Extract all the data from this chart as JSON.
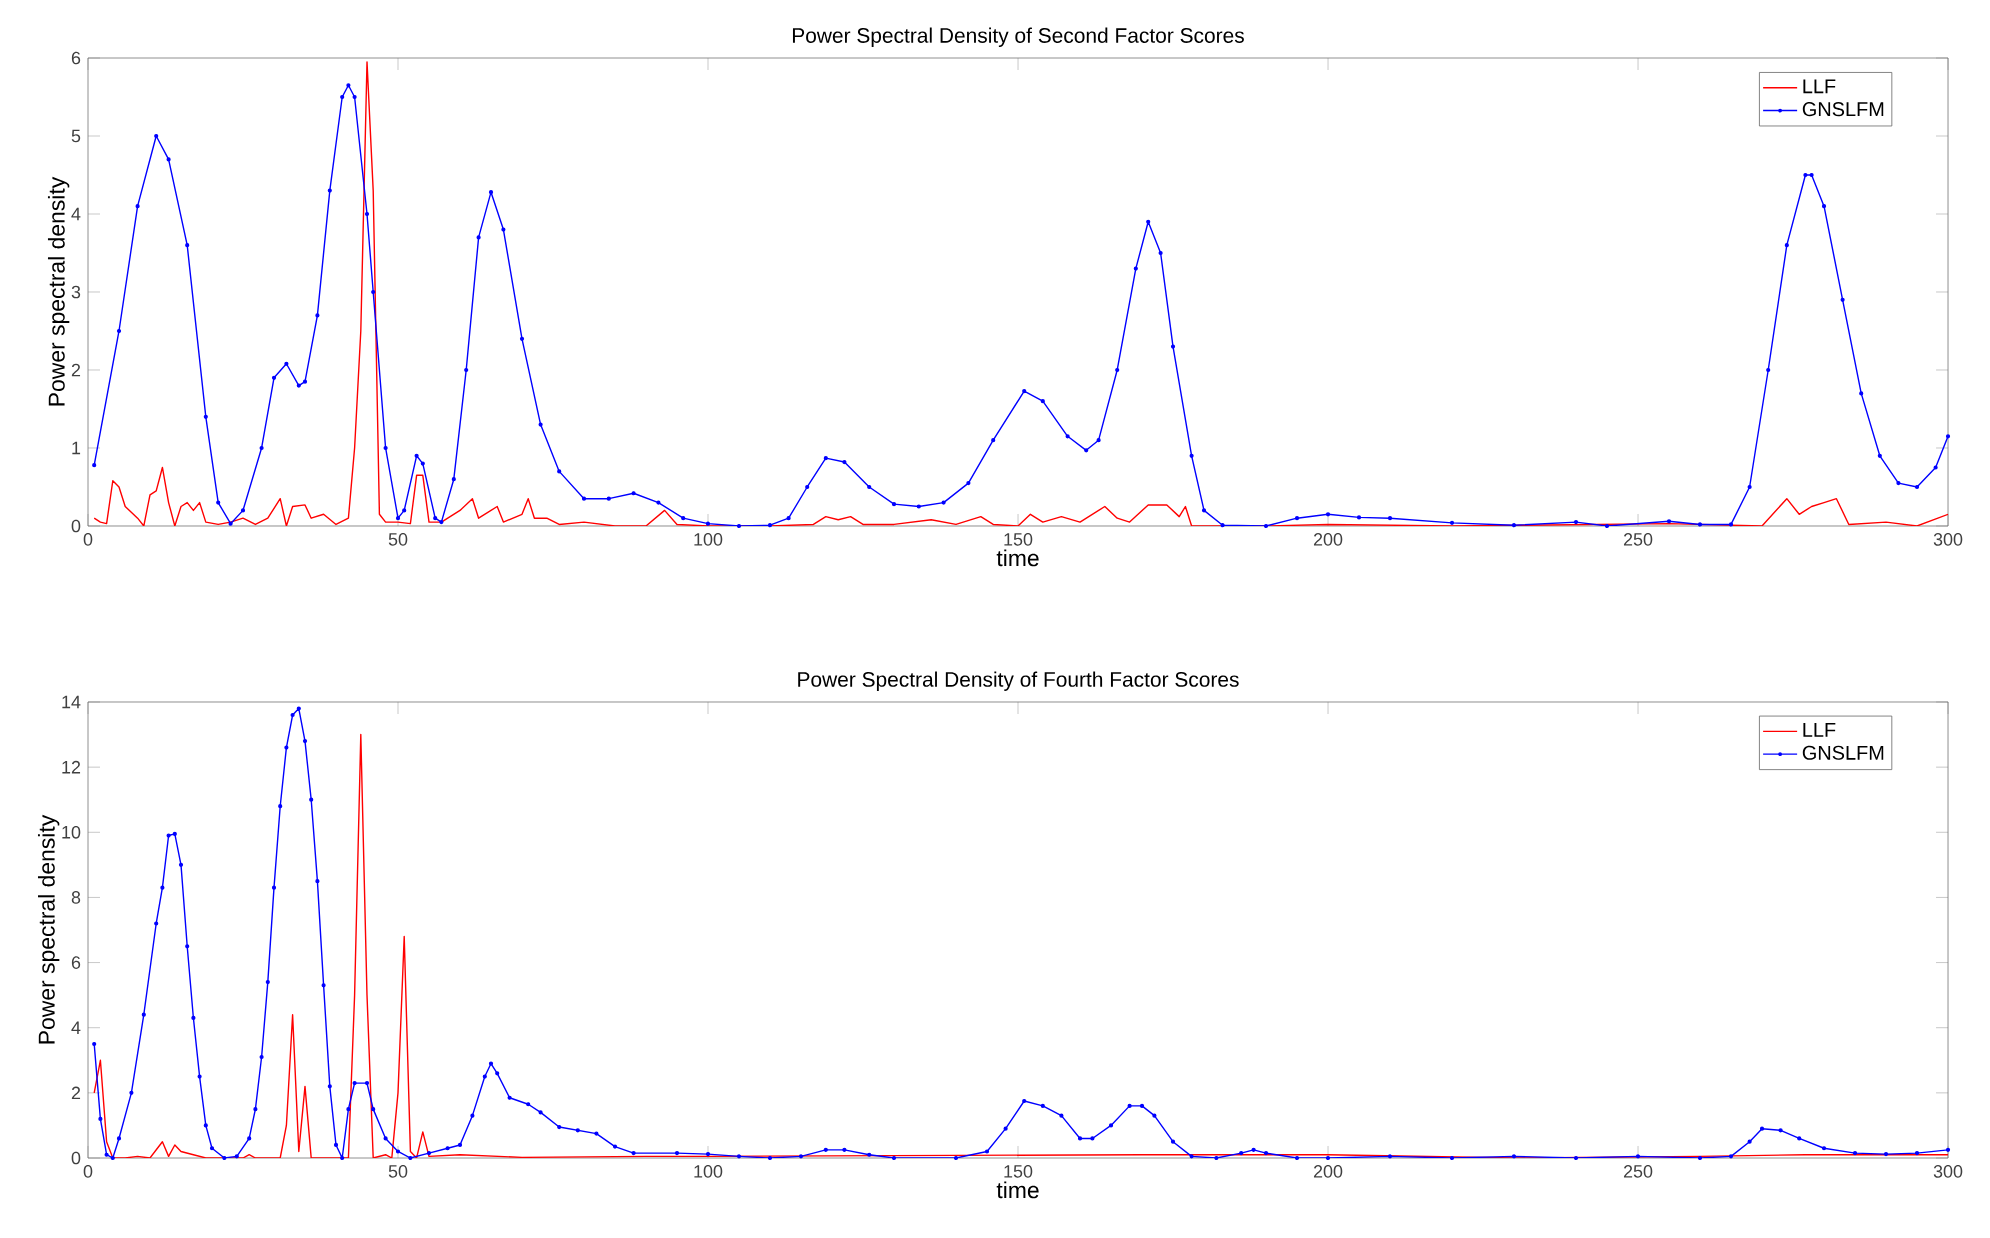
{
  "chart_data": [
    {
      "type": "line",
      "title": "Power Spectral Density of Second Factor Scores",
      "xlabel": "time",
      "ylabel": "Power spectral density",
      "xlim": [
        0,
        300
      ],
      "ylim": [
        0,
        6
      ],
      "xticks": [
        0,
        50,
        100,
        150,
        200,
        250,
        300
      ],
      "yticks": [
        0,
        1,
        2,
        3,
        4,
        5,
        6
      ],
      "grid": false,
      "legend": "top right",
      "series": [
        {
          "name": "LLF",
          "color": "#ff0000",
          "marker": "none",
          "x": [
            1,
            2,
            3,
            4,
            5,
            6,
            8,
            9,
            10,
            11,
            12,
            13,
            14,
            15,
            16,
            17,
            18,
            19,
            21,
            23,
            25,
            27,
            29,
            31,
            32,
            33,
            35,
            36,
            38,
            40,
            42,
            43,
            44,
            45,
            46,
            47,
            48,
            50,
            52,
            53,
            54,
            55,
            57,
            60,
            62,
            63,
            66,
            67,
            70,
            71,
            72,
            74,
            76,
            80,
            85,
            90,
            93,
            95,
            100,
            110,
            117,
            119,
            121,
            123,
            125,
            130,
            136,
            140,
            144,
            146,
            150,
            152,
            154,
            157,
            160,
            164,
            166,
            168,
            171,
            174,
            176,
            177,
            178,
            190,
            200,
            220,
            255,
            270,
            274,
            276,
            278,
            280,
            282,
            284,
            290,
            295,
            300
          ],
          "values": [
            0.1,
            0.05,
            0.03,
            0.58,
            0.5,
            0.25,
            0.1,
            0.0,
            0.4,
            0.45,
            0.75,
            0.3,
            0.0,
            0.25,
            0.3,
            0.2,
            0.3,
            0.05,
            0.02,
            0.05,
            0.1,
            0.02,
            0.1,
            0.35,
            0.0,
            0.25,
            0.27,
            0.1,
            0.15,
            0.02,
            0.1,
            1.0,
            2.5,
            5.95,
            4.3,
            0.15,
            0.05,
            0.05,
            0.03,
            0.65,
            0.65,
            0.05,
            0.05,
            0.2,
            0.35,
            0.1,
            0.25,
            0.05,
            0.15,
            0.35,
            0.1,
            0.1,
            0.02,
            0.05,
            0.0,
            0.0,
            0.2,
            0.02,
            0.0,
            0.0,
            0.02,
            0.12,
            0.08,
            0.12,
            0.02,
            0.02,
            0.08,
            0.02,
            0.12,
            0.02,
            0.0,
            0.15,
            0.05,
            0.12,
            0.05,
            0.25,
            0.1,
            0.05,
            0.27,
            0.27,
            0.12,
            0.25,
            0.0,
            0.0,
            0.02,
            0.0,
            0.03,
            0.0,
            0.35,
            0.15,
            0.25,
            0.3,
            0.35,
            0.02,
            0.05,
            0.0,
            0.15
          ]
        },
        {
          "name": "GNSLFM",
          "color": "#0000ff",
          "marker": "circle",
          "x": [
            1,
            5,
            8,
            11,
            13,
            16,
            19,
            21,
            23,
            25,
            28,
            30,
            32,
            34,
            35,
            37,
            39,
            41,
            42,
            43,
            45,
            46,
            48,
            50,
            51,
            53,
            54,
            56,
            57,
            59,
            61,
            63,
            65,
            67,
            70,
            73,
            76,
            80,
            84,
            88,
            92,
            96,
            100,
            105,
            110,
            113,
            116,
            119,
            122,
            126,
            130,
            134,
            138,
            142,
            146,
            151,
            154,
            158,
            161,
            163,
            166,
            169,
            171,
            173,
            175,
            178,
            180,
            183,
            190,
            195,
            200,
            205,
            210,
            220,
            230,
            240,
            245,
            255,
            260,
            265,
            268,
            271,
            274,
            277,
            278,
            280,
            283,
            286,
            289,
            292,
            295,
            298,
            300
          ],
          "values": [
            0.78,
            2.5,
            4.1,
            5.0,
            4.7,
            3.6,
            1.4,
            0.3,
            0.03,
            0.2,
            1.0,
            1.9,
            2.08,
            1.8,
            1.85,
            2.7,
            4.3,
            5.5,
            5.65,
            5.5,
            4.0,
            3.0,
            1.0,
            0.1,
            0.2,
            0.9,
            0.8,
            0.1,
            0.05,
            0.6,
            2.0,
            3.7,
            4.28,
            3.8,
            2.4,
            1.3,
            0.7,
            0.35,
            0.35,
            0.42,
            0.3,
            0.1,
            0.03,
            0.0,
            0.01,
            0.1,
            0.5,
            0.87,
            0.82,
            0.5,
            0.28,
            0.25,
            0.3,
            0.55,
            1.1,
            1.73,
            1.6,
            1.15,
            0.97,
            1.1,
            2.0,
            3.3,
            3.9,
            3.5,
            2.3,
            0.9,
            0.2,
            0.01,
            0.0,
            0.1,
            0.15,
            0.11,
            0.1,
            0.04,
            0.01,
            0.05,
            0.0,
            0.06,
            0.02,
            0.02,
            0.5,
            2.0,
            3.6,
            4.5,
            4.5,
            4.1,
            2.9,
            1.7,
            0.9,
            0.55,
            0.5,
            0.75,
            1.15
          ]
        }
      ]
    },
    {
      "type": "line",
      "title": "Power Spectral Density of Fourth Factor Scores",
      "xlabel": "time",
      "ylabel": "Power spectral density",
      "xlim": [
        0,
        300
      ],
      "ylim": [
        0,
        14
      ],
      "xticks": [
        0,
        50,
        100,
        150,
        200,
        250,
        300
      ],
      "yticks": [
        0,
        2,
        4,
        6,
        8,
        10,
        12,
        14
      ],
      "grid": false,
      "legend": "top right",
      "series": [
        {
          "name": "LLF",
          "color": "#ff0000",
          "marker": "none",
          "x": [
            1,
            2,
            3,
            4,
            6,
            8,
            10,
            12,
            13,
            14,
            15,
            17,
            19,
            25,
            26,
            27,
            31,
            32,
            33,
            34,
            35,
            36,
            42,
            43,
            44,
            45,
            46,
            48,
            49,
            50,
            51,
            52,
            53,
            54,
            55,
            60,
            70,
            90,
            100,
            140,
            170,
            200,
            230,
            260,
            277,
            300
          ],
          "values": [
            2.0,
            3.0,
            0.5,
            0.0,
            0.0,
            0.05,
            0.0,
            0.5,
            0.05,
            0.4,
            0.2,
            0.1,
            0.0,
            0.0,
            0.1,
            0.0,
            0.0,
            1.0,
            4.4,
            0.2,
            2.2,
            0.0,
            0.0,
            5.0,
            13.0,
            5.0,
            0.0,
            0.1,
            0.0,
            2.0,
            6.8,
            0.2,
            0.0,
            0.8,
            0.05,
            0.1,
            0.02,
            0.05,
            0.05,
            0.08,
            0.1,
            0.1,
            0.0,
            0.05,
            0.1,
            0.1
          ]
        },
        {
          "name": "GNSLFM",
          "color": "#0000ff",
          "marker": "circle",
          "x": [
            1,
            2,
            3,
            4,
            5,
            7,
            9,
            11,
            12,
            13,
            14,
            15,
            16,
            17,
            18,
            19,
            20,
            22,
            24,
            26,
            27,
            28,
            29,
            30,
            31,
            32,
            33,
            34,
            35,
            36,
            37,
            38,
            39,
            40,
            41,
            42,
            43,
            45,
            46,
            48,
            50,
            52,
            55,
            58,
            60,
            62,
            64,
            65,
            66,
            68,
            71,
            73,
            76,
            79,
            82,
            85,
            88,
            95,
            100,
            105,
            110,
            115,
            119,
            122,
            126,
            130,
            140,
            145,
            148,
            151,
            154,
            157,
            160,
            162,
            165,
            168,
            170,
            172,
            175,
            178,
            182,
            186,
            188,
            190,
            195,
            200,
            210,
            220,
            230,
            240,
            250,
            260,
            265,
            268,
            270,
            273,
            276,
            280,
            285,
            290,
            295,
            300
          ],
          "values": [
            3.5,
            1.2,
            0.1,
            0.0,
            0.6,
            2.0,
            4.4,
            7.2,
            8.3,
            9.9,
            9.95,
            9.0,
            6.5,
            4.3,
            2.5,
            1.0,
            0.3,
            0.0,
            0.05,
            0.6,
            1.5,
            3.1,
            5.4,
            8.3,
            10.8,
            12.6,
            13.6,
            13.8,
            12.8,
            11.0,
            8.5,
            5.3,
            2.2,
            0.4,
            0.0,
            1.5,
            2.3,
            2.3,
            1.5,
            0.6,
            0.2,
            0.0,
            0.15,
            0.3,
            0.4,
            1.3,
            2.5,
            2.9,
            2.6,
            1.85,
            1.65,
            1.4,
            0.95,
            0.85,
            0.75,
            0.35,
            0.15,
            0.15,
            0.12,
            0.05,
            0.0,
            0.05,
            0.25,
            0.25,
            0.1,
            0.0,
            0.0,
            0.2,
            0.9,
            1.75,
            1.6,
            1.3,
            0.6,
            0.6,
            1.0,
            1.6,
            1.6,
            1.3,
            0.5,
            0.05,
            0.0,
            0.15,
            0.25,
            0.15,
            0.0,
            0.0,
            0.05,
            0.0,
            0.05,
            0.0,
            0.05,
            0.0,
            0.05,
            0.5,
            0.9,
            0.85,
            0.6,
            0.3,
            0.15,
            0.12,
            0.15,
            0.25
          ]
        }
      ]
    }
  ]
}
